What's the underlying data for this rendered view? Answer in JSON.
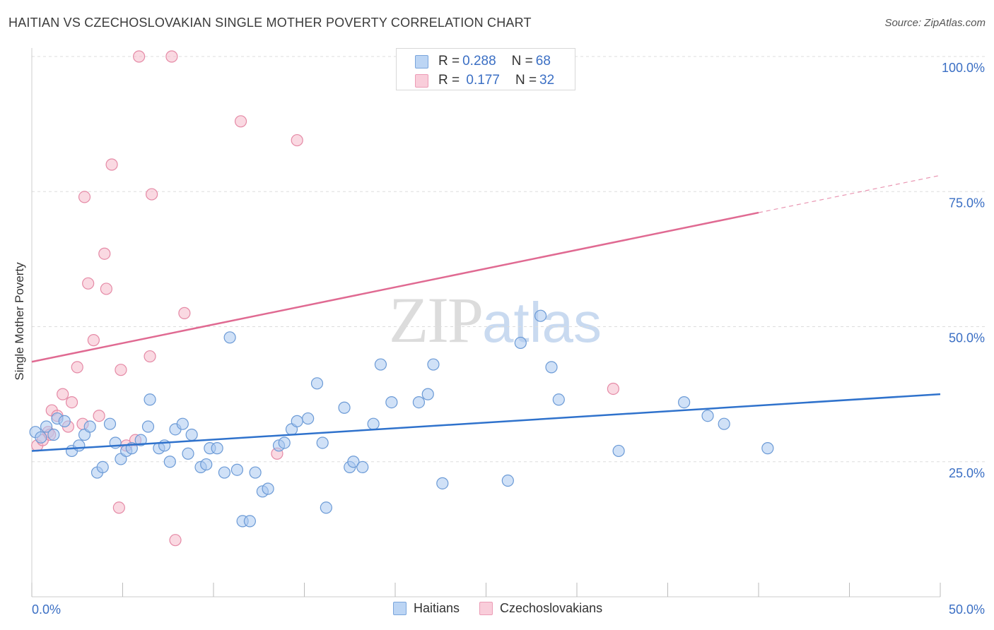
{
  "title": "HAITIAN VS CZECHOSLOVAKIAN SINGLE MOTHER POVERTY CORRELATION CHART",
  "source": "Source: ZipAtlas.com",
  "watermark": {
    "zip": "ZIP",
    "atlas": "atlas"
  },
  "legend": {
    "rows": [
      {
        "r_key": "R = ",
        "r_val": "0.288",
        "n_key": "N = ",
        "n_val": "68"
      },
      {
        "r_key": "R = ",
        "r_val": " 0.177",
        "n_key": "N = ",
        "n_val": "32"
      }
    ]
  },
  "colors": {
    "haitians_fill": "#a9c9f1",
    "haitians_stroke": "#6b9ad6",
    "haitians_line": "#2f72cc",
    "czech_fill": "#f6b9cb",
    "czech_stroke": "#e58aa6",
    "czech_line": "#e06a92",
    "tick_label": "#3b6fc4",
    "grid": "#dddddd"
  },
  "chart_data": {
    "type": "scatter",
    "title": "HAITIAN VS CZECHOSLOVAKIAN SINGLE MOTHER POVERTY CORRELATION CHART",
    "xlabel": "",
    "ylabel": "Single Mother Poverty",
    "xlim": [
      0,
      50
    ],
    "ylim": [
      0,
      100
    ],
    "x_tick_labels": [
      "0.0%",
      "50.0%"
    ],
    "y_tick_labels": [
      "25.0%",
      "50.0%",
      "75.0%",
      "100.0%"
    ],
    "y_ticks": [
      25,
      50,
      75,
      100
    ],
    "grid": true,
    "legend_position": "top-center",
    "series": [
      {
        "name": "Haitians",
        "r": 0.288,
        "n": 68,
        "trend": {
          "x": [
            0,
            50
          ],
          "y": [
            27.0,
            37.5
          ],
          "dashed_from": null
        },
        "points": [
          [
            0.2,
            30.5
          ],
          [
            0.5,
            29.5
          ],
          [
            0.8,
            31.5
          ],
          [
            1.2,
            30.0
          ],
          [
            1.4,
            33.0
          ],
          [
            1.8,
            32.5
          ],
          [
            2.2,
            27.0
          ],
          [
            2.6,
            28.0
          ],
          [
            2.9,
            30.0
          ],
          [
            3.2,
            31.5
          ],
          [
            3.6,
            23.0
          ],
          [
            3.9,
            24.0
          ],
          [
            4.3,
            32.0
          ],
          [
            4.6,
            28.5
          ],
          [
            4.9,
            25.5
          ],
          [
            5.2,
            27.0
          ],
          [
            5.5,
            27.5
          ],
          [
            6.0,
            29.0
          ],
          [
            6.4,
            31.5
          ],
          [
            6.5,
            36.5
          ],
          [
            7.0,
            27.5
          ],
          [
            7.3,
            28.0
          ],
          [
            7.6,
            25.0
          ],
          [
            7.9,
            31.0
          ],
          [
            8.3,
            32.0
          ],
          [
            8.6,
            26.5
          ],
          [
            8.8,
            30.0
          ],
          [
            9.3,
            24.0
          ],
          [
            9.6,
            24.5
          ],
          [
            9.8,
            27.5
          ],
          [
            10.2,
            27.5
          ],
          [
            10.6,
            23.0
          ],
          [
            10.9,
            48.0
          ],
          [
            11.3,
            23.5
          ],
          [
            11.6,
            14.0
          ],
          [
            12.0,
            14.0
          ],
          [
            12.3,
            23.0
          ],
          [
            12.7,
            19.5
          ],
          [
            13.0,
            20.0
          ],
          [
            13.6,
            28.0
          ],
          [
            13.9,
            28.5
          ],
          [
            14.3,
            31.0
          ],
          [
            14.6,
            32.5
          ],
          [
            15.2,
            33.0
          ],
          [
            15.7,
            39.5
          ],
          [
            16.0,
            28.5
          ],
          [
            16.2,
            16.5
          ],
          [
            17.2,
            35.0
          ],
          [
            17.5,
            24.0
          ],
          [
            17.7,
            25.0
          ],
          [
            18.2,
            24.0
          ],
          [
            18.8,
            32.0
          ],
          [
            19.2,
            43.0
          ],
          [
            19.8,
            36.0
          ],
          [
            21.3,
            36.0
          ],
          [
            21.8,
            37.5
          ],
          [
            22.1,
            43.0
          ],
          [
            22.6,
            21.0
          ],
          [
            26.2,
            21.5
          ],
          [
            26.9,
            47.0
          ],
          [
            28.0,
            52.0
          ],
          [
            28.6,
            42.5
          ],
          [
            29.0,
            36.5
          ],
          [
            32.3,
            27.0
          ],
          [
            35.9,
            36.0
          ],
          [
            37.2,
            33.5
          ],
          [
            38.1,
            32.0
          ],
          [
            40.5,
            27.5
          ]
        ]
      },
      {
        "name": "Czechoslovakians",
        "r": 0.177,
        "n": 32,
        "trend": {
          "x": [
            0,
            50
          ],
          "y": [
            43.5,
            78.0
          ],
          "dashed_from": 40.0
        },
        "points": [
          [
            0.3,
            28.0
          ],
          [
            0.6,
            29.0
          ],
          [
            0.9,
            30.5
          ],
          [
            1.1,
            34.5
          ],
          [
            1.4,
            33.5
          ],
          [
            1.7,
            37.5
          ],
          [
            2.0,
            31.5
          ],
          [
            2.2,
            36.0
          ],
          [
            2.5,
            42.5
          ],
          [
            2.8,
            32.0
          ],
          [
            3.1,
            58.0
          ],
          [
            3.4,
            47.5
          ],
          [
            3.7,
            33.5
          ],
          [
            4.0,
            63.5
          ],
          [
            4.1,
            57.0
          ],
          [
            4.4,
            80.0
          ],
          [
            4.8,
            16.5
          ],
          [
            4.9,
            42.0
          ],
          [
            5.2,
            28.0
          ],
          [
            5.7,
            29.0
          ],
          [
            5.9,
            100.0
          ],
          [
            6.5,
            44.5
          ],
          [
            6.6,
            74.5
          ],
          [
            7.9,
            10.5
          ],
          [
            7.7,
            100.0
          ],
          [
            8.4,
            52.5
          ],
          [
            11.5,
            88.0
          ],
          [
            13.5,
            26.5
          ],
          [
            14.6,
            84.5
          ],
          [
            32.0,
            38.5
          ],
          [
            2.9,
            74.0
          ],
          [
            1.0,
            30.0
          ]
        ]
      }
    ]
  }
}
